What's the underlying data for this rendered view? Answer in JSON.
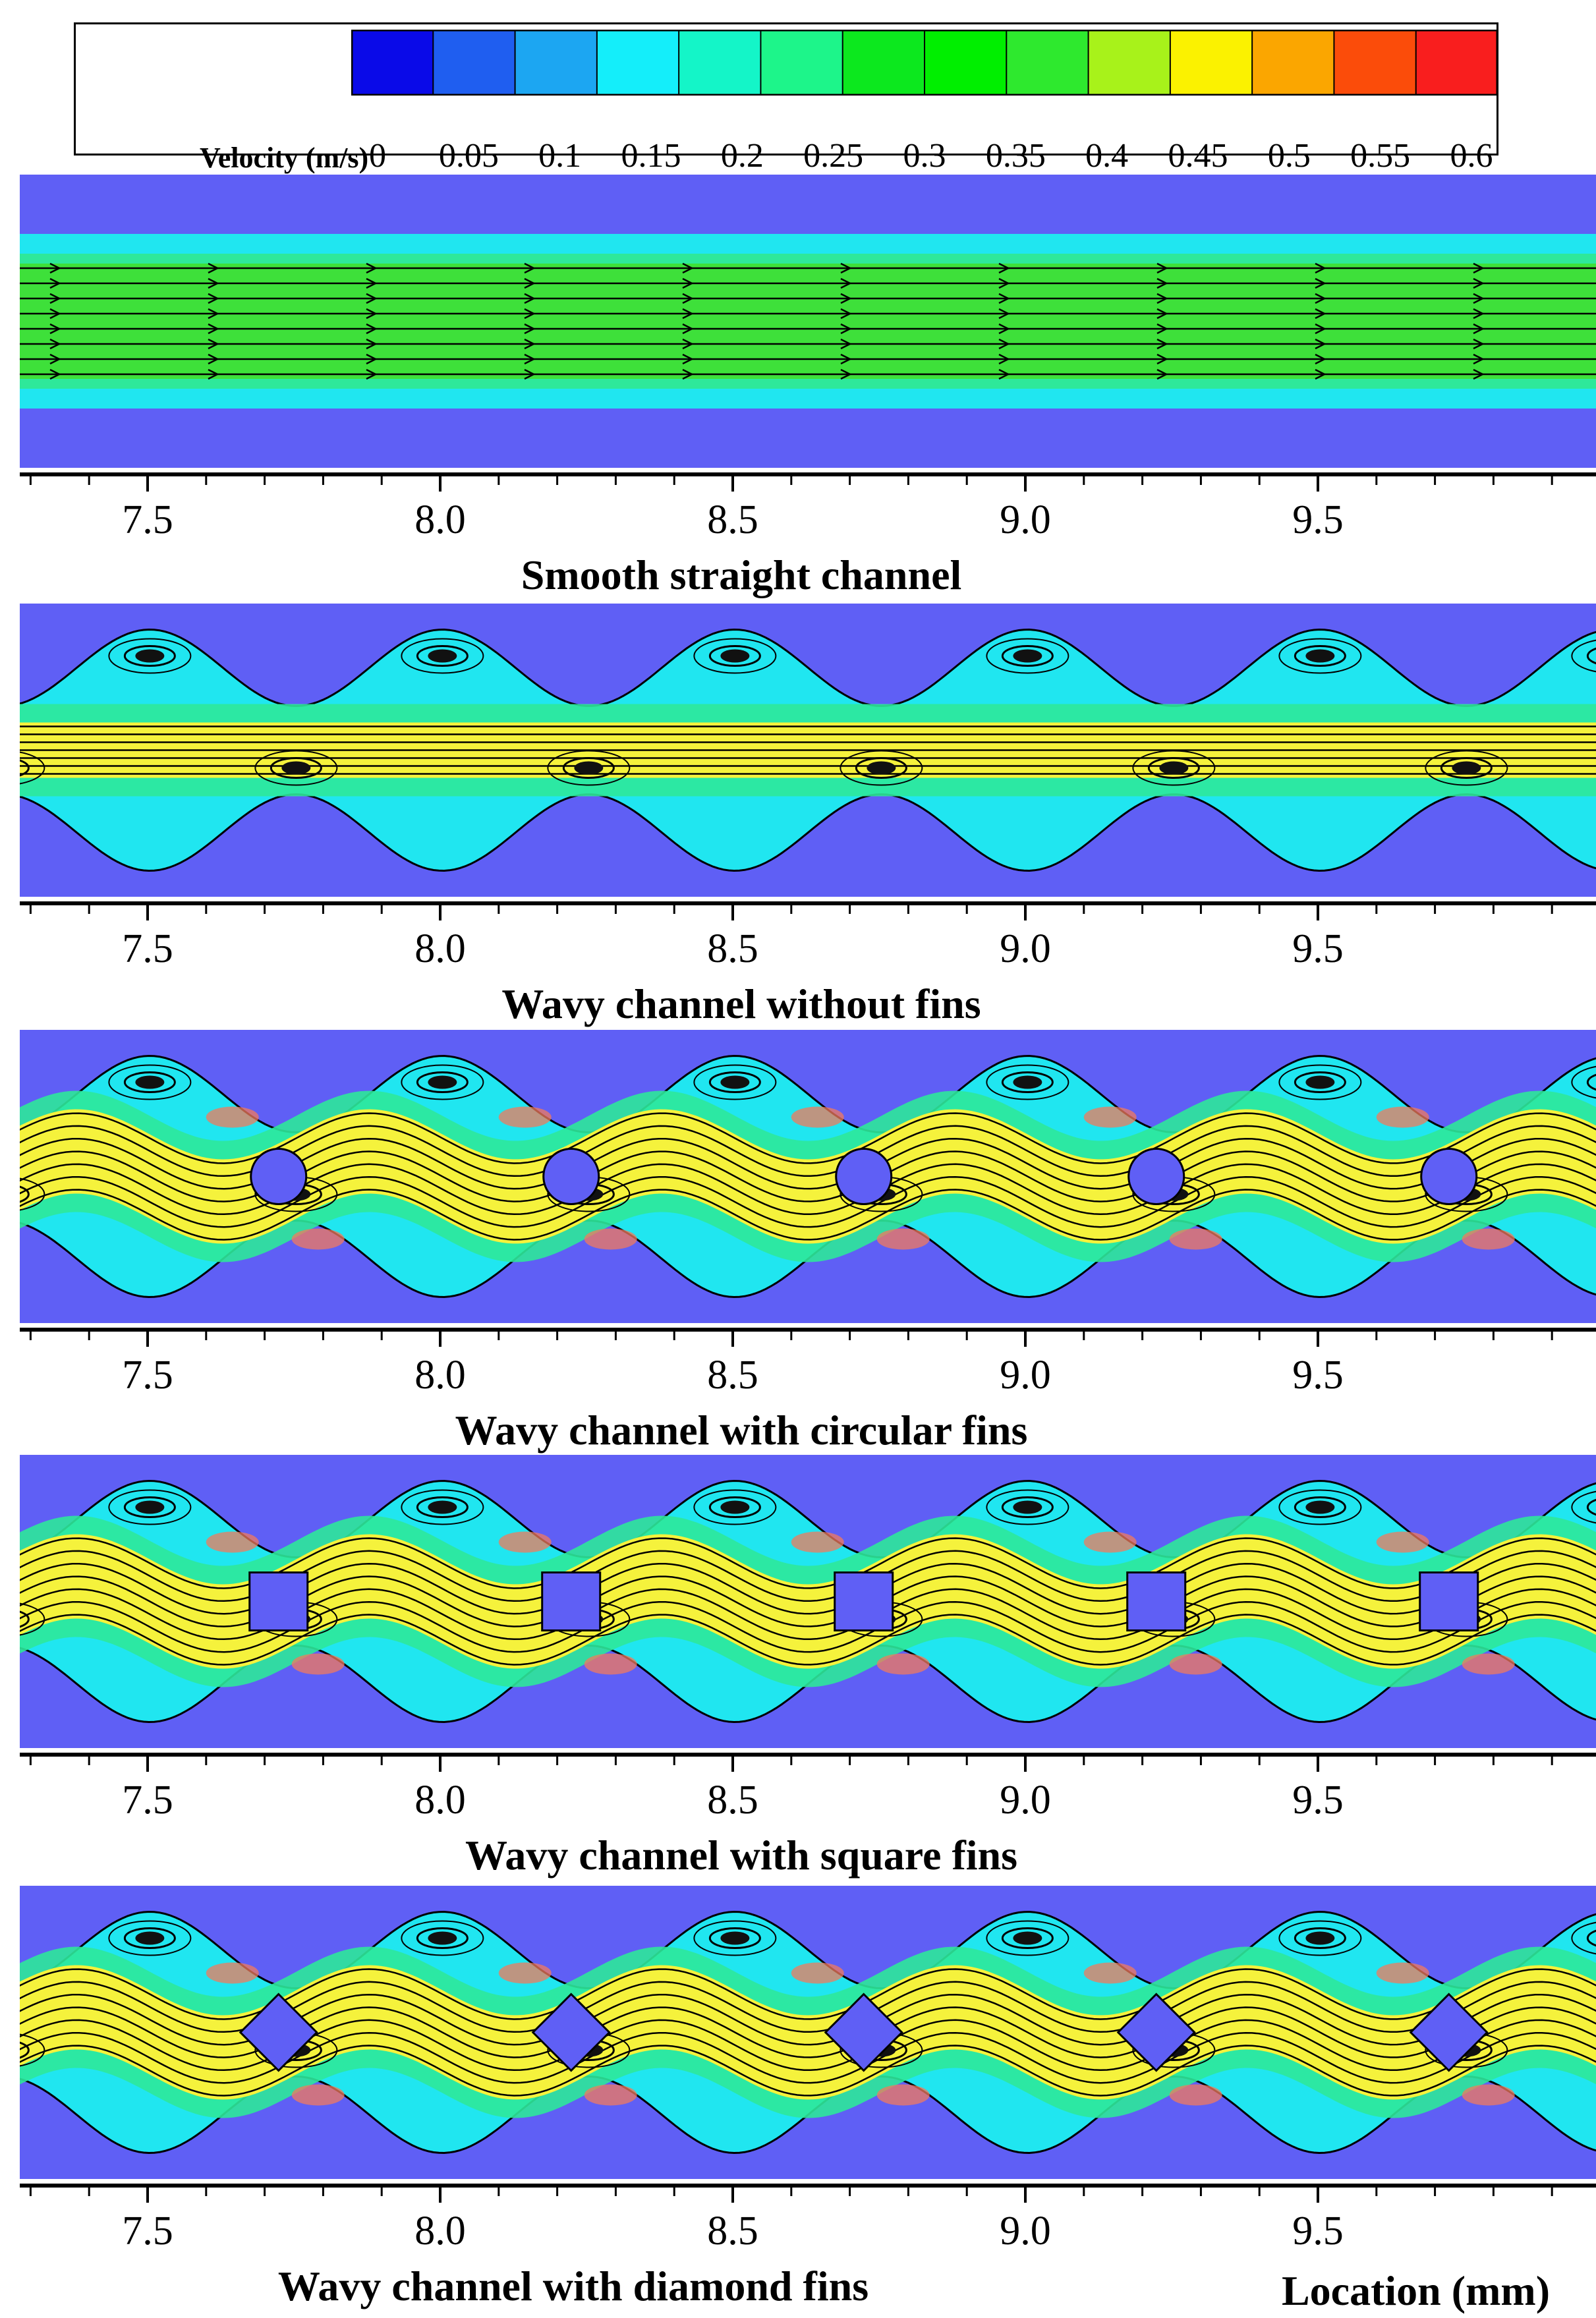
{
  "legend": {
    "title": "Velocity (m/s)",
    "ticks": [
      "0",
      "0.05",
      "0.1",
      "0.15",
      "0.2",
      "0.25",
      "0.3",
      "0.35",
      "0.4",
      "0.45",
      "0.5",
      "0.55",
      "0.6"
    ],
    "bin_colors": [
      "#0a0ae8",
      "#1f5ef0",
      "#1ca6f2",
      "#14eefa",
      "#14f5c8",
      "#1df58a",
      "#0ce81e",
      "#00ef00",
      "#2ee92e",
      "#a8f21a",
      "#fbf200",
      "#fba600",
      "#fb4c0a",
      "#f91e1e"
    ]
  },
  "colors": {
    "wall": "#5f5ff5",
    "fluid_low": "#20e6f0",
    "fluid_mid": "#2ee89a",
    "fluid_core_smooth": "#3ee03a",
    "fluid_core_wavy": "#f5f23c",
    "hot_spot": "#f27a5c",
    "streamline": "#000000",
    "fin": "#5f5ff5"
  },
  "axis": {
    "label": "Location (mm)",
    "range_mm": [
      7.3,
      9.95
    ],
    "tick_labels": [
      "7.5",
      "8.0",
      "8.5",
      "9.0",
      "9.5"
    ],
    "tick_values": [
      7.5,
      8.0,
      8.5,
      9.0,
      9.5
    ],
    "minor_step_mm": 0.1
  },
  "panels": [
    {
      "title": "Smooth straight channel",
      "geometry": "straight",
      "fin_shape": "none",
      "fin_positions_mm": []
    },
    {
      "title": "Wavy channel without fins",
      "geometry": "wavy",
      "fin_shape": "none",
      "fin_positions_mm": []
    },
    {
      "title": "Wavy channel with circular fins",
      "geometry": "wavy",
      "fin_shape": "circle",
      "fin_positions_mm": [
        7.69,
        8.19,
        8.69,
        9.19,
        9.69
      ]
    },
    {
      "title": "Wavy channel with square fins",
      "geometry": "wavy",
      "fin_shape": "square",
      "fin_positions_mm": [
        7.69,
        8.19,
        8.69,
        9.19,
        9.69
      ]
    },
    {
      "title": "Wavy channel with diamond fins",
      "geometry": "wavy",
      "fin_shape": "diamond",
      "fin_positions_mm": [
        7.69,
        8.19,
        8.69,
        9.19,
        9.69
      ]
    }
  ]
}
